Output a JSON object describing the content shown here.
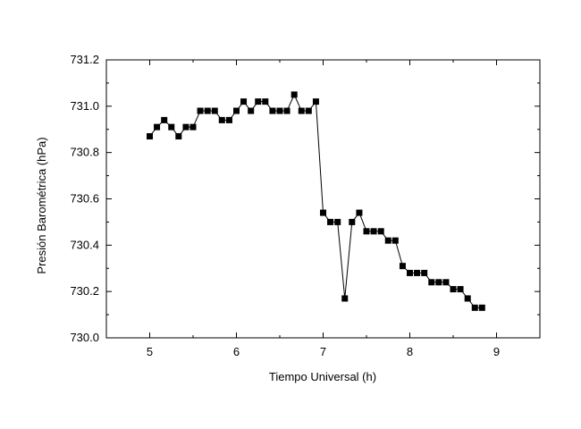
{
  "chart_data": {
    "type": "scatter",
    "title": "",
    "xlabel": "Tiempo Universal (h)",
    "ylabel": "Presión Barométrica (hPa)",
    "xlim": [
      4.5,
      9.5
    ],
    "ylim": [
      730.0,
      731.2
    ],
    "xticks": [
      5,
      6,
      7,
      8,
      9
    ],
    "xtick_labels": [
      "5",
      "6",
      "7",
      "8",
      "9"
    ],
    "yticks": [
      730.0,
      730.2,
      730.4,
      730.6,
      730.8,
      731.0,
      731.2
    ],
    "ytick_labels": [
      "730.0",
      "730.2",
      "730.4",
      "730.6",
      "730.8",
      "731.0",
      "731.2"
    ],
    "grid": false,
    "legend": "none",
    "series": [
      {
        "marker": "square",
        "line": true,
        "color": "#000000",
        "x": [
          5.0,
          5.083,
          5.167,
          5.25,
          5.333,
          5.417,
          5.5,
          5.583,
          5.667,
          5.75,
          5.833,
          5.917,
          6.0,
          6.083,
          6.167,
          6.25,
          6.333,
          6.417,
          6.5,
          6.583,
          6.667,
          6.75,
          6.833,
          6.917,
          7.0,
          7.083,
          7.167,
          7.25,
          7.333,
          7.417,
          7.5,
          7.583,
          7.667,
          7.75,
          7.833,
          7.917,
          8.0,
          8.083,
          8.167,
          8.25,
          8.333,
          8.417,
          8.5,
          8.583,
          8.667,
          8.75,
          8.833
        ],
        "y": [
          730.87,
          730.91,
          730.94,
          730.91,
          730.87,
          730.91,
          730.91,
          730.98,
          730.98,
          730.98,
          730.94,
          730.94,
          730.98,
          731.02,
          730.98,
          731.02,
          731.02,
          730.98,
          730.98,
          730.98,
          731.05,
          730.98,
          730.98,
          731.02,
          730.54,
          730.5,
          730.5,
          730.17,
          730.5,
          730.54,
          730.46,
          730.46,
          730.46,
          730.42,
          730.42,
          730.31,
          730.28,
          730.28,
          730.28,
          730.24,
          730.24,
          730.24,
          730.21,
          730.21,
          730.17,
          730.13,
          730.13
        ]
      }
    ]
  }
}
